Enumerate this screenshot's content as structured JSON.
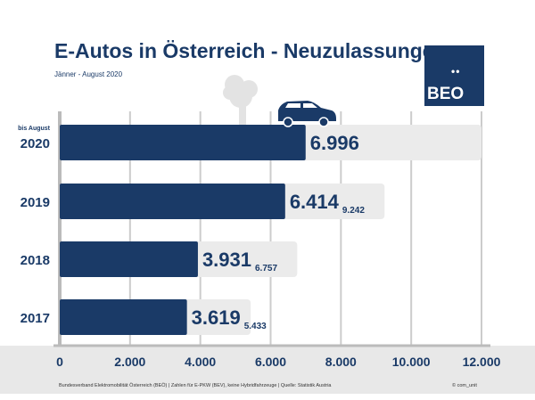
{
  "header": {
    "title": "E-Autos in Österreich - Neuzulassungen",
    "subtitle": "Jänner - August 2020"
  },
  "logo": {
    "text": "BEO",
    "dots": "••"
  },
  "footer": {
    "source": "Bundesverband Elektromobilität Österreich (BEÖ) | Zahlen für E-PKW (BEV), keine Hybridfahrzeuge | Quelle: Statistik Austria",
    "copyright": "© com_unit"
  },
  "colors": {
    "bar": "#1a3a67",
    "total_bar": "#ebebeb",
    "grid": "#cccccc"
  },
  "chart_data": {
    "type": "bar",
    "orientation": "horizontal",
    "categories": [
      "2020",
      "2019",
      "2018",
      "2017"
    ],
    "category_notes": [
      "bis August",
      "",
      "",
      ""
    ],
    "series": [
      {
        "values": [
          6996,
          6414,
          3931,
          3619
        ],
        "labels": [
          "6.996",
          "6.414",
          "3.931",
          "3.619"
        ]
      },
      {
        "values": [
          null,
          9242,
          6757,
          5433
        ],
        "labels": [
          "",
          "9.242",
          "6.757",
          "5.433"
        ]
      }
    ],
    "xlim": [
      0,
      12000
    ],
    "xticks": [
      0,
      2000,
      4000,
      6000,
      8000,
      10000,
      12000
    ],
    "xtick_labels": [
      "0",
      "2.000",
      "4.000",
      "6.000",
      "8.000",
      "10.000",
      "12.000"
    ],
    "grid": true
  }
}
